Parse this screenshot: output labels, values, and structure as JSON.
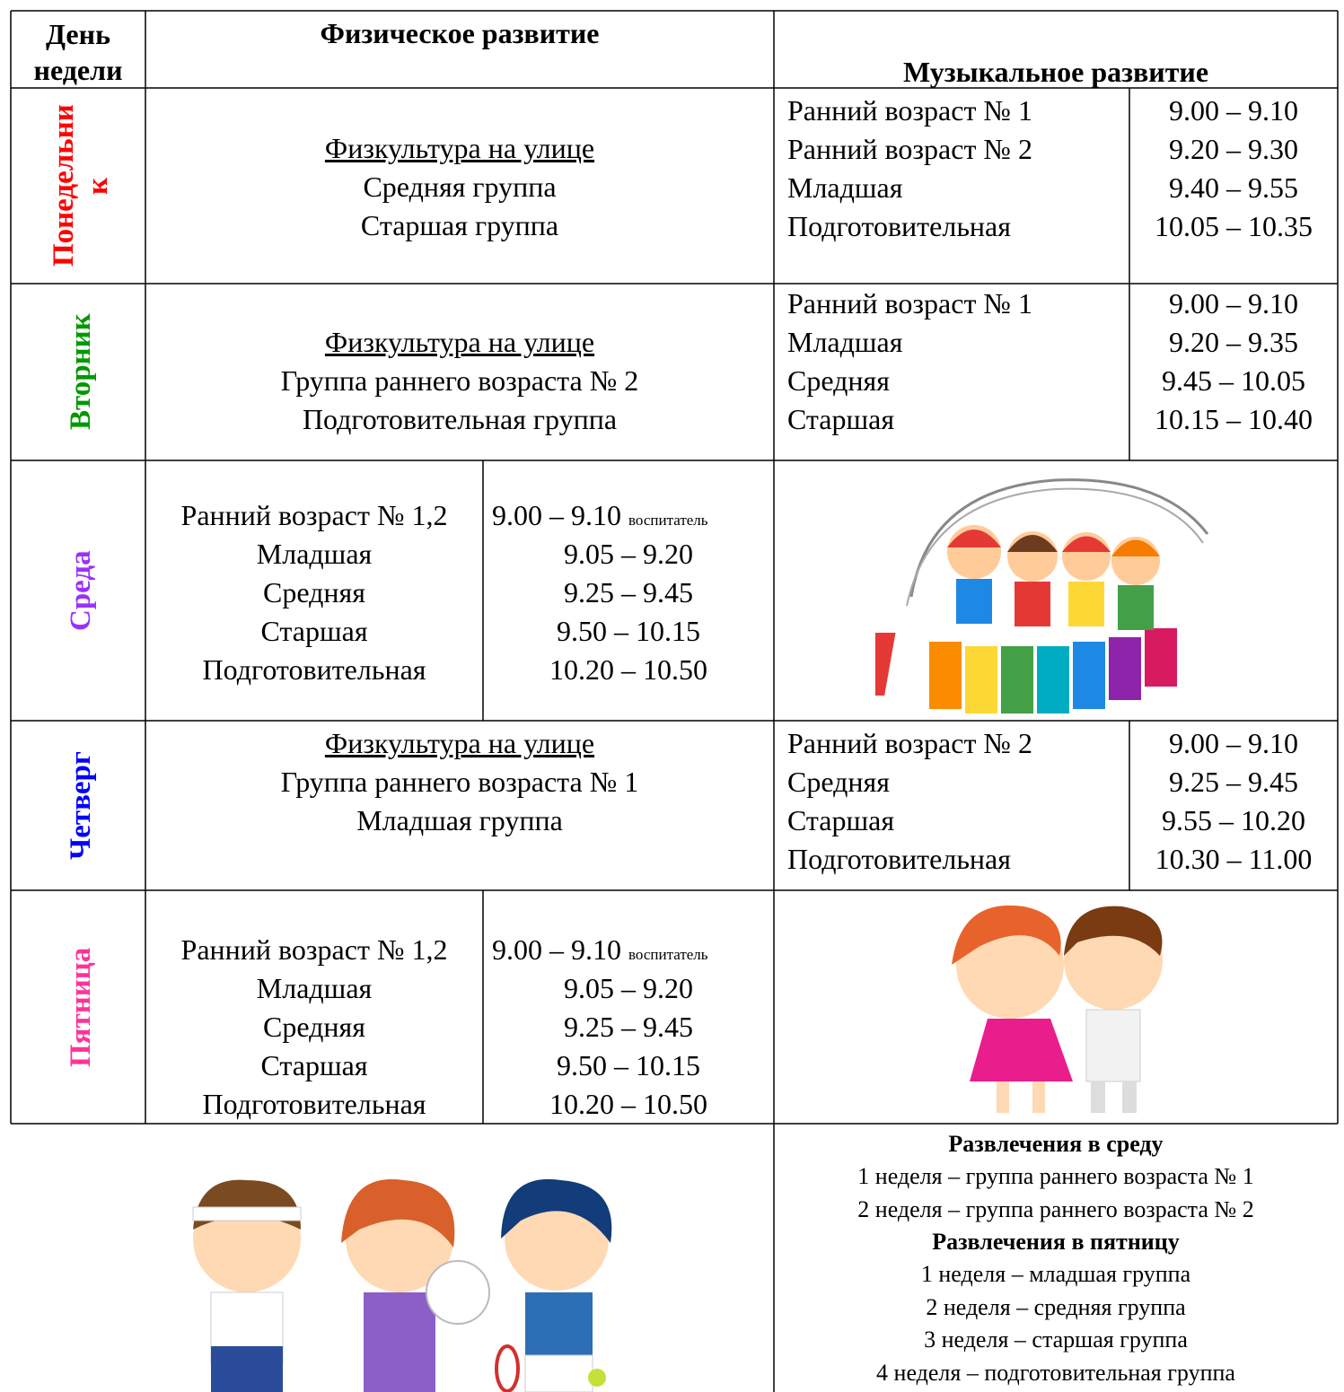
{
  "header": {
    "day": "День недели",
    "physical": "Физическое развитие",
    "music": "Музыкальное развитие"
  },
  "days": [
    {
      "name": "Понедельник",
      "color": "#ff0000",
      "physical": {
        "title": "Физкультура на улице",
        "groups": [
          "Средняя группа",
          "Старшая группа"
        ]
      },
      "music": [
        {
          "group": "Ранний возраст № 1",
          "time": "9.00 – 9.10"
        },
        {
          "group": "Ранний возраст № 2",
          "time": "9.20 – 9.30"
        },
        {
          "group": "Младшая",
          "time": "9.40 – 9.55"
        },
        {
          "group": "Подготовительная",
          "time": "10.05 – 10.35"
        }
      ]
    },
    {
      "name": "Вторник",
      "color": "#009900",
      "physical": {
        "title": "Физкультура на улице",
        "groups": [
          "Группа раннего возраста № 2",
          "Подготовительная группа"
        ]
      },
      "music": [
        {
          "group": "Ранний возраст № 1",
          "time": "9.00 – 9.10"
        },
        {
          "group": "Младшая",
          "time": "9.20 – 9.35"
        },
        {
          "group": "Средняя",
          "time": "9.45 – 10.05"
        },
        {
          "group": "Старшая",
          "time": "10.15 – 10.40"
        }
      ]
    },
    {
      "name": "Среда",
      "color": "#9b30ff",
      "physical": {
        "schedule": [
          {
            "group": "Ранний возраст № 1,2",
            "time": "9.00 – 9.10",
            "note": "воспитатель"
          },
          {
            "group": "Младшая",
            "time": "9.05 – 9.20"
          },
          {
            "group": "Средняя",
            "time": "9.25 – 9.45"
          },
          {
            "group": "Старшая",
            "time": "9.50 – 10.15"
          },
          {
            "group": "Подготовительная",
            "time": "10.20 – 10.50"
          }
        ]
      }
    },
    {
      "name": "Четверг",
      "color": "#0000ff",
      "physical": {
        "title": "Физкультура на улице",
        "groups": [
          "Группа раннего возраста № 1",
          "Младшая группа"
        ]
      },
      "music": [
        {
          "group": "Ранний возраст № 2",
          "time": "9.00 – 9.10"
        },
        {
          "group": "Средняя",
          "time": "9.25 – 9.45"
        },
        {
          "group": "Старшая",
          "time": "9.55 – 10.20"
        },
        {
          "group": "Подготовительная",
          "time": "10.30 – 11.00"
        }
      ]
    },
    {
      "name": "Пятница",
      "color": "#ff3399",
      "physical": {
        "schedule": [
          {
            "group": "Ранний возраст № 1,2",
            "time": "9.00 – 9.10",
            "note": "воспитатель"
          },
          {
            "group": "Младшая",
            "time": "9.05 – 9.20"
          },
          {
            "group": "Средняя",
            "time": "9.25 – 9.45"
          },
          {
            "group": "Старшая",
            "time": "9.50 – 10.15"
          },
          {
            "group": "Подготовительная",
            "time": "10.20 – 10.50"
          }
        ]
      }
    }
  ],
  "entertainment": [
    {
      "title": "Развлечения в среду",
      "items": [
        "1 неделя – группа раннего возраста № 1",
        "2 неделя – группа раннего возраста № 2"
      ]
    },
    {
      "title": "Развлечения в пятницу",
      "items": [
        "1 неделя – младшая группа",
        "2 неделя – средняя группа",
        "3 неделя – старшая группа",
        "4 неделя – подготовительная группа"
      ]
    }
  ]
}
